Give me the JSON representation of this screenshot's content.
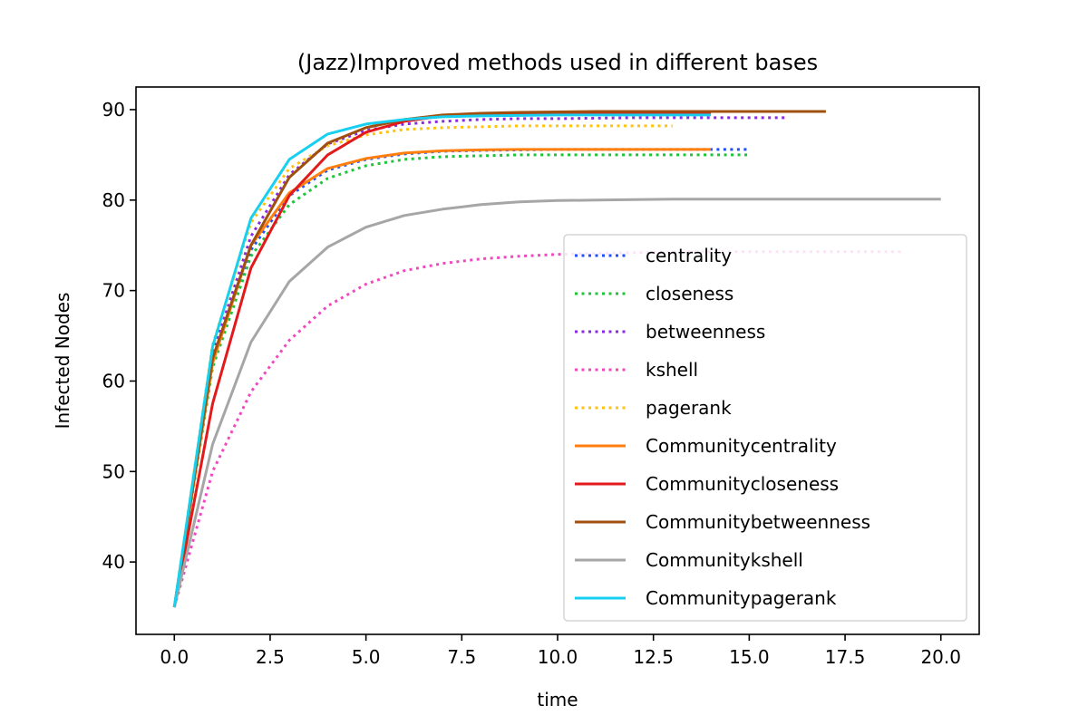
{
  "chart_data": {
    "type": "line",
    "title": "(Jazz)Improved methods used in different bases",
    "xlabel": "time",
    "ylabel": "Infected Nodes",
    "xlim": [
      -1,
      21
    ],
    "ylim": [
      32,
      92.5
    ],
    "xticks": [
      0,
      2.5,
      5,
      7.5,
      10,
      12.5,
      15,
      17.5,
      20
    ],
    "xtick_labels": [
      "0.0",
      "2.5",
      "5.0",
      "7.5",
      "10.0",
      "12.5",
      "15.0",
      "17.5",
      "20.0"
    ],
    "yticks": [
      40,
      50,
      60,
      70,
      80,
      90
    ],
    "ytick_labels": [
      "40",
      "50",
      "60",
      "70",
      "80",
      "90"
    ],
    "legend_position": "lower-right",
    "series": [
      {
        "name": "centrality",
        "color": "#1f4fff",
        "style": "dotted",
        "x": [
          0,
          1,
          2,
          3,
          4,
          5,
          6,
          7,
          8,
          9,
          10,
          11,
          12,
          13,
          14,
          15
        ],
        "y": [
          35,
          62.5,
          74.5,
          80.5,
          83.3,
          84.5,
          85.1,
          85.4,
          85.5,
          85.55,
          85.6,
          85.6,
          85.6,
          85.6,
          85.6,
          85.6
        ]
      },
      {
        "name": "closeness",
        "color": "#1fc43a",
        "style": "dotted",
        "x": [
          0,
          1,
          2,
          3,
          4,
          5,
          6,
          7,
          8,
          9,
          10,
          11,
          12,
          13,
          14,
          15
        ],
        "y": [
          35,
          61.5,
          73.8,
          79.5,
          82.4,
          83.8,
          84.5,
          84.8,
          84.9,
          85,
          85,
          85,
          85,
          85,
          85,
          85
        ]
      },
      {
        "name": "betweenness",
        "color": "#8a2be2",
        "style": "dotted",
        "x": [
          0,
          1,
          2,
          3,
          4,
          5,
          6,
          7,
          8,
          9,
          10,
          11,
          12,
          13,
          14,
          15,
          16
        ],
        "y": [
          35,
          63,
          76,
          82.8,
          86.2,
          87.7,
          88.4,
          88.7,
          88.9,
          89,
          89,
          89.05,
          89.1,
          89.1,
          89.1,
          89.1,
          89.1
        ]
      },
      {
        "name": "kshell",
        "color": "#f048c0",
        "style": "dotted",
        "x": [
          0,
          1,
          2,
          3,
          4,
          5,
          6,
          7,
          8,
          9,
          10,
          11,
          12,
          13,
          14,
          15,
          16,
          17,
          18,
          19
        ],
        "y": [
          35,
          50,
          58.8,
          64.5,
          68.3,
          70.7,
          72.2,
          73,
          73.5,
          73.8,
          74,
          74.1,
          74.2,
          74.25,
          74.3,
          74.3,
          74.3,
          74.3,
          74.3,
          74.3
        ]
      },
      {
        "name": "pagerank",
        "color": "#ffc20e",
        "style": "dotted",
        "x": [
          0,
          1,
          2,
          3,
          4,
          5,
          6,
          7,
          8,
          9,
          10,
          11,
          12,
          13
        ],
        "y": [
          35,
          64,
          77.5,
          83.5,
          86,
          87.2,
          87.8,
          88,
          88.1,
          88.2,
          88.2,
          88.2,
          88.2,
          88.2
        ]
      },
      {
        "name": "Communitycentrality",
        "color": "#ff7f0e",
        "style": "solid",
        "x": [
          0,
          1,
          2,
          3,
          4,
          5,
          6,
          7,
          8,
          9,
          10,
          11,
          12,
          13,
          14
        ],
        "y": [
          35,
          62,
          75,
          80.8,
          83.5,
          84.6,
          85.2,
          85.45,
          85.55,
          85.6,
          85.6,
          85.6,
          85.6,
          85.6,
          85.6
        ]
      },
      {
        "name": "Communitycloseness",
        "color": "#e31a1c",
        "style": "solid",
        "x": [
          0,
          1,
          2,
          3,
          4,
          5,
          6,
          7,
          8,
          9,
          10,
          11,
          12,
          13,
          14
        ],
        "y": [
          35,
          57.5,
          72.5,
          80.5,
          85,
          87.5,
          88.7,
          89.3,
          89.5,
          89.6,
          89.6,
          89.6,
          89.6,
          89.6,
          89.6
        ]
      },
      {
        "name": "Communitybetweenness",
        "color": "#a0500e",
        "style": "solid",
        "x": [
          0,
          1,
          2,
          3,
          4,
          5,
          6,
          7,
          8,
          9,
          10,
          11,
          12,
          13,
          14,
          15,
          16,
          17
        ],
        "y": [
          35,
          62.5,
          75,
          82.5,
          86.3,
          88,
          88.9,
          89.4,
          89.6,
          89.7,
          89.75,
          89.8,
          89.8,
          89.8,
          89.8,
          89.8,
          89.8,
          89.8
        ]
      },
      {
        "name": "Communitykshell",
        "color": "#a6a6a6",
        "style": "solid",
        "x": [
          0,
          1,
          2,
          3,
          4,
          5,
          6,
          7,
          8,
          9,
          10,
          11,
          12,
          13,
          14,
          15,
          16,
          17,
          18,
          19,
          20
        ],
        "y": [
          35,
          53,
          64.3,
          71,
          74.8,
          77,
          78.3,
          79,
          79.5,
          79.8,
          79.95,
          80,
          80.05,
          80.1,
          80.1,
          80.1,
          80.1,
          80.1,
          80.1,
          80.1,
          80.1
        ]
      },
      {
        "name": "Communitypagerank",
        "color": "#17d0f0",
        "style": "solid",
        "x": [
          0,
          1,
          2,
          3,
          4,
          5,
          6,
          7,
          8,
          9,
          10,
          11,
          12,
          13,
          14
        ],
        "y": [
          35,
          63.8,
          78,
          84.5,
          87.3,
          88.4,
          88.9,
          89.2,
          89.3,
          89.35,
          89.4,
          89.4,
          89.4,
          89.4,
          89.4
        ]
      }
    ]
  }
}
